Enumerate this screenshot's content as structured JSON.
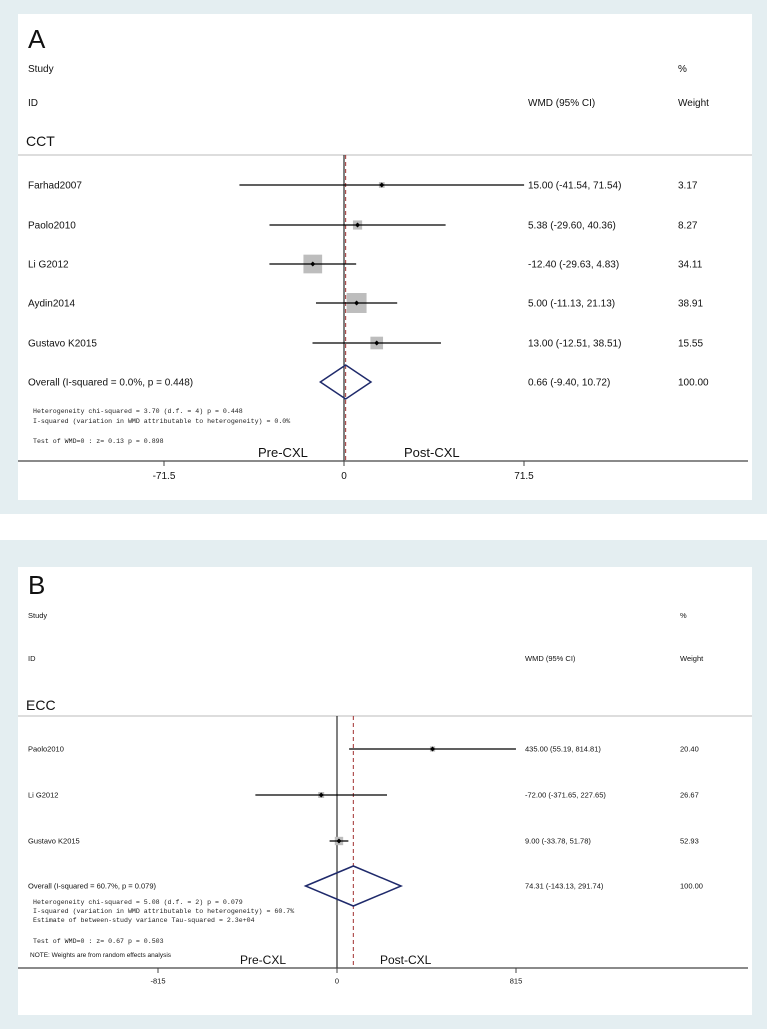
{
  "colors": {
    "background": "#e4eef1",
    "plot": "#ffffff",
    "box": "#bdbdbd",
    "diamond": "#1f2a6b",
    "null_line": "#000000",
    "overall_line": "#a03030"
  },
  "chart_data": [
    {
      "type": "forest",
      "panel_label": "A",
      "header": {
        "study": "Study",
        "id": "ID",
        "pct": "%",
        "effect": "WMD (95% CI)",
        "weight": "Weight"
      },
      "subgroup": "CCT",
      "studies": [
        {
          "name": "Farhad2007",
          "es": 15.0,
          "lo": -41.54,
          "hi": 71.54,
          "label": "15.00 (-41.54, 71.54)",
          "weight": "3.17",
          "w": 3.17
        },
        {
          "name": "Paolo2010",
          "es": 5.38,
          "lo": -29.6,
          "hi": 40.36,
          "label": "5.38 (-29.60, 40.36)",
          "weight": "8.27",
          "w": 8.27
        },
        {
          "name": "Li G2012",
          "es": -12.4,
          "lo": -29.63,
          "hi": 4.83,
          "label": "-12.40 (-29.63, 4.83)",
          "weight": "34.11",
          "w": 34.11
        },
        {
          "name": "Aydin2014",
          "es": 5.0,
          "lo": -11.13,
          "hi": 21.13,
          "label": "5.00 (-11.13, 21.13)",
          "weight": "38.91",
          "w": 38.91
        },
        {
          "name": "Gustavo K2015",
          "es": 13.0,
          "lo": -12.51,
          "hi": 38.51,
          "label": "13.00 (-12.51, 38.51)",
          "weight": "15.55",
          "w": 15.55
        }
      ],
      "overall": {
        "name": "Overall  (I-squared = 0.0%, p = 0.448)",
        "es": 0.66,
        "lo": -9.4,
        "hi": 10.72,
        "label": "0.66 (-9.40, 10.72)",
        "weight": "100.00"
      },
      "stats": [
        "Heterogeneity chi-squared =   3.70 (d.f. = 4) p = 0.448",
        "I-squared (variation in WMD attributable to heterogeneity) =   0.0%",
        "Test of WMD=0 : z=   0.13 p = 0.898"
      ],
      "note": "",
      "left_label": "Pre-CXL",
      "right_label": "Post-CXL",
      "ticks": [
        -71.5,
        0,
        71.5
      ],
      "tick_labels": [
        "-71.5",
        "0",
        "71.5"
      ],
      "xlim": [
        -143,
        161
      ]
    },
    {
      "type": "forest",
      "panel_label": "B",
      "header": {
        "study": "Study",
        "id": "ID",
        "pct": "%",
        "effect": "WMD (95% CI)",
        "weight": "Weight"
      },
      "subgroup": "ECC",
      "studies": [
        {
          "name": "Paolo2010",
          "es": 435.0,
          "lo": 55.19,
          "hi": 814.81,
          "label": "435.00 (55.19, 814.81)",
          "weight": "20.40",
          "w": 20.4
        },
        {
          "name": "Li G2012",
          "es": -72.0,
          "lo": -371.65,
          "hi": 227.65,
          "label": "-72.00 (-371.65, 227.65)",
          "weight": "26.67",
          "w": 26.67
        },
        {
          "name": "Gustavo K2015",
          "es": 9.0,
          "lo": -33.78,
          "hi": 51.78,
          "label": "9.00 (-33.78, 51.78)",
          "weight": "52.93",
          "w": 52.93
        }
      ],
      "overall": {
        "name": "Overall  (I-squared = 60.7%, p = 0.079)",
        "es": 74.31,
        "lo": -143.13,
        "hi": 291.74,
        "label": "74.31 (-143.13, 291.74)",
        "weight": "100.00"
      },
      "stats": [
        "Heterogeneity chi-squared =   5.08 (d.f. = 2) p = 0.079",
        "I-squared (variation in WMD attributable to heterogeneity) =  60.7%",
        "Estimate of between-study variance Tau-squared =  2.3e+04",
        "Test of WMD=0 : z=   0.67 p = 0.503"
      ],
      "note": "NOTE: Weights are from random effects analysis",
      "left_label": "Pre-CXL",
      "right_label": "Post-CXL",
      "ticks": [
        -815,
        0,
        815
      ],
      "tick_labels": [
        "-815",
        "0",
        "815"
      ],
      "xlim": [
        -1450,
        1870
      ]
    }
  ]
}
